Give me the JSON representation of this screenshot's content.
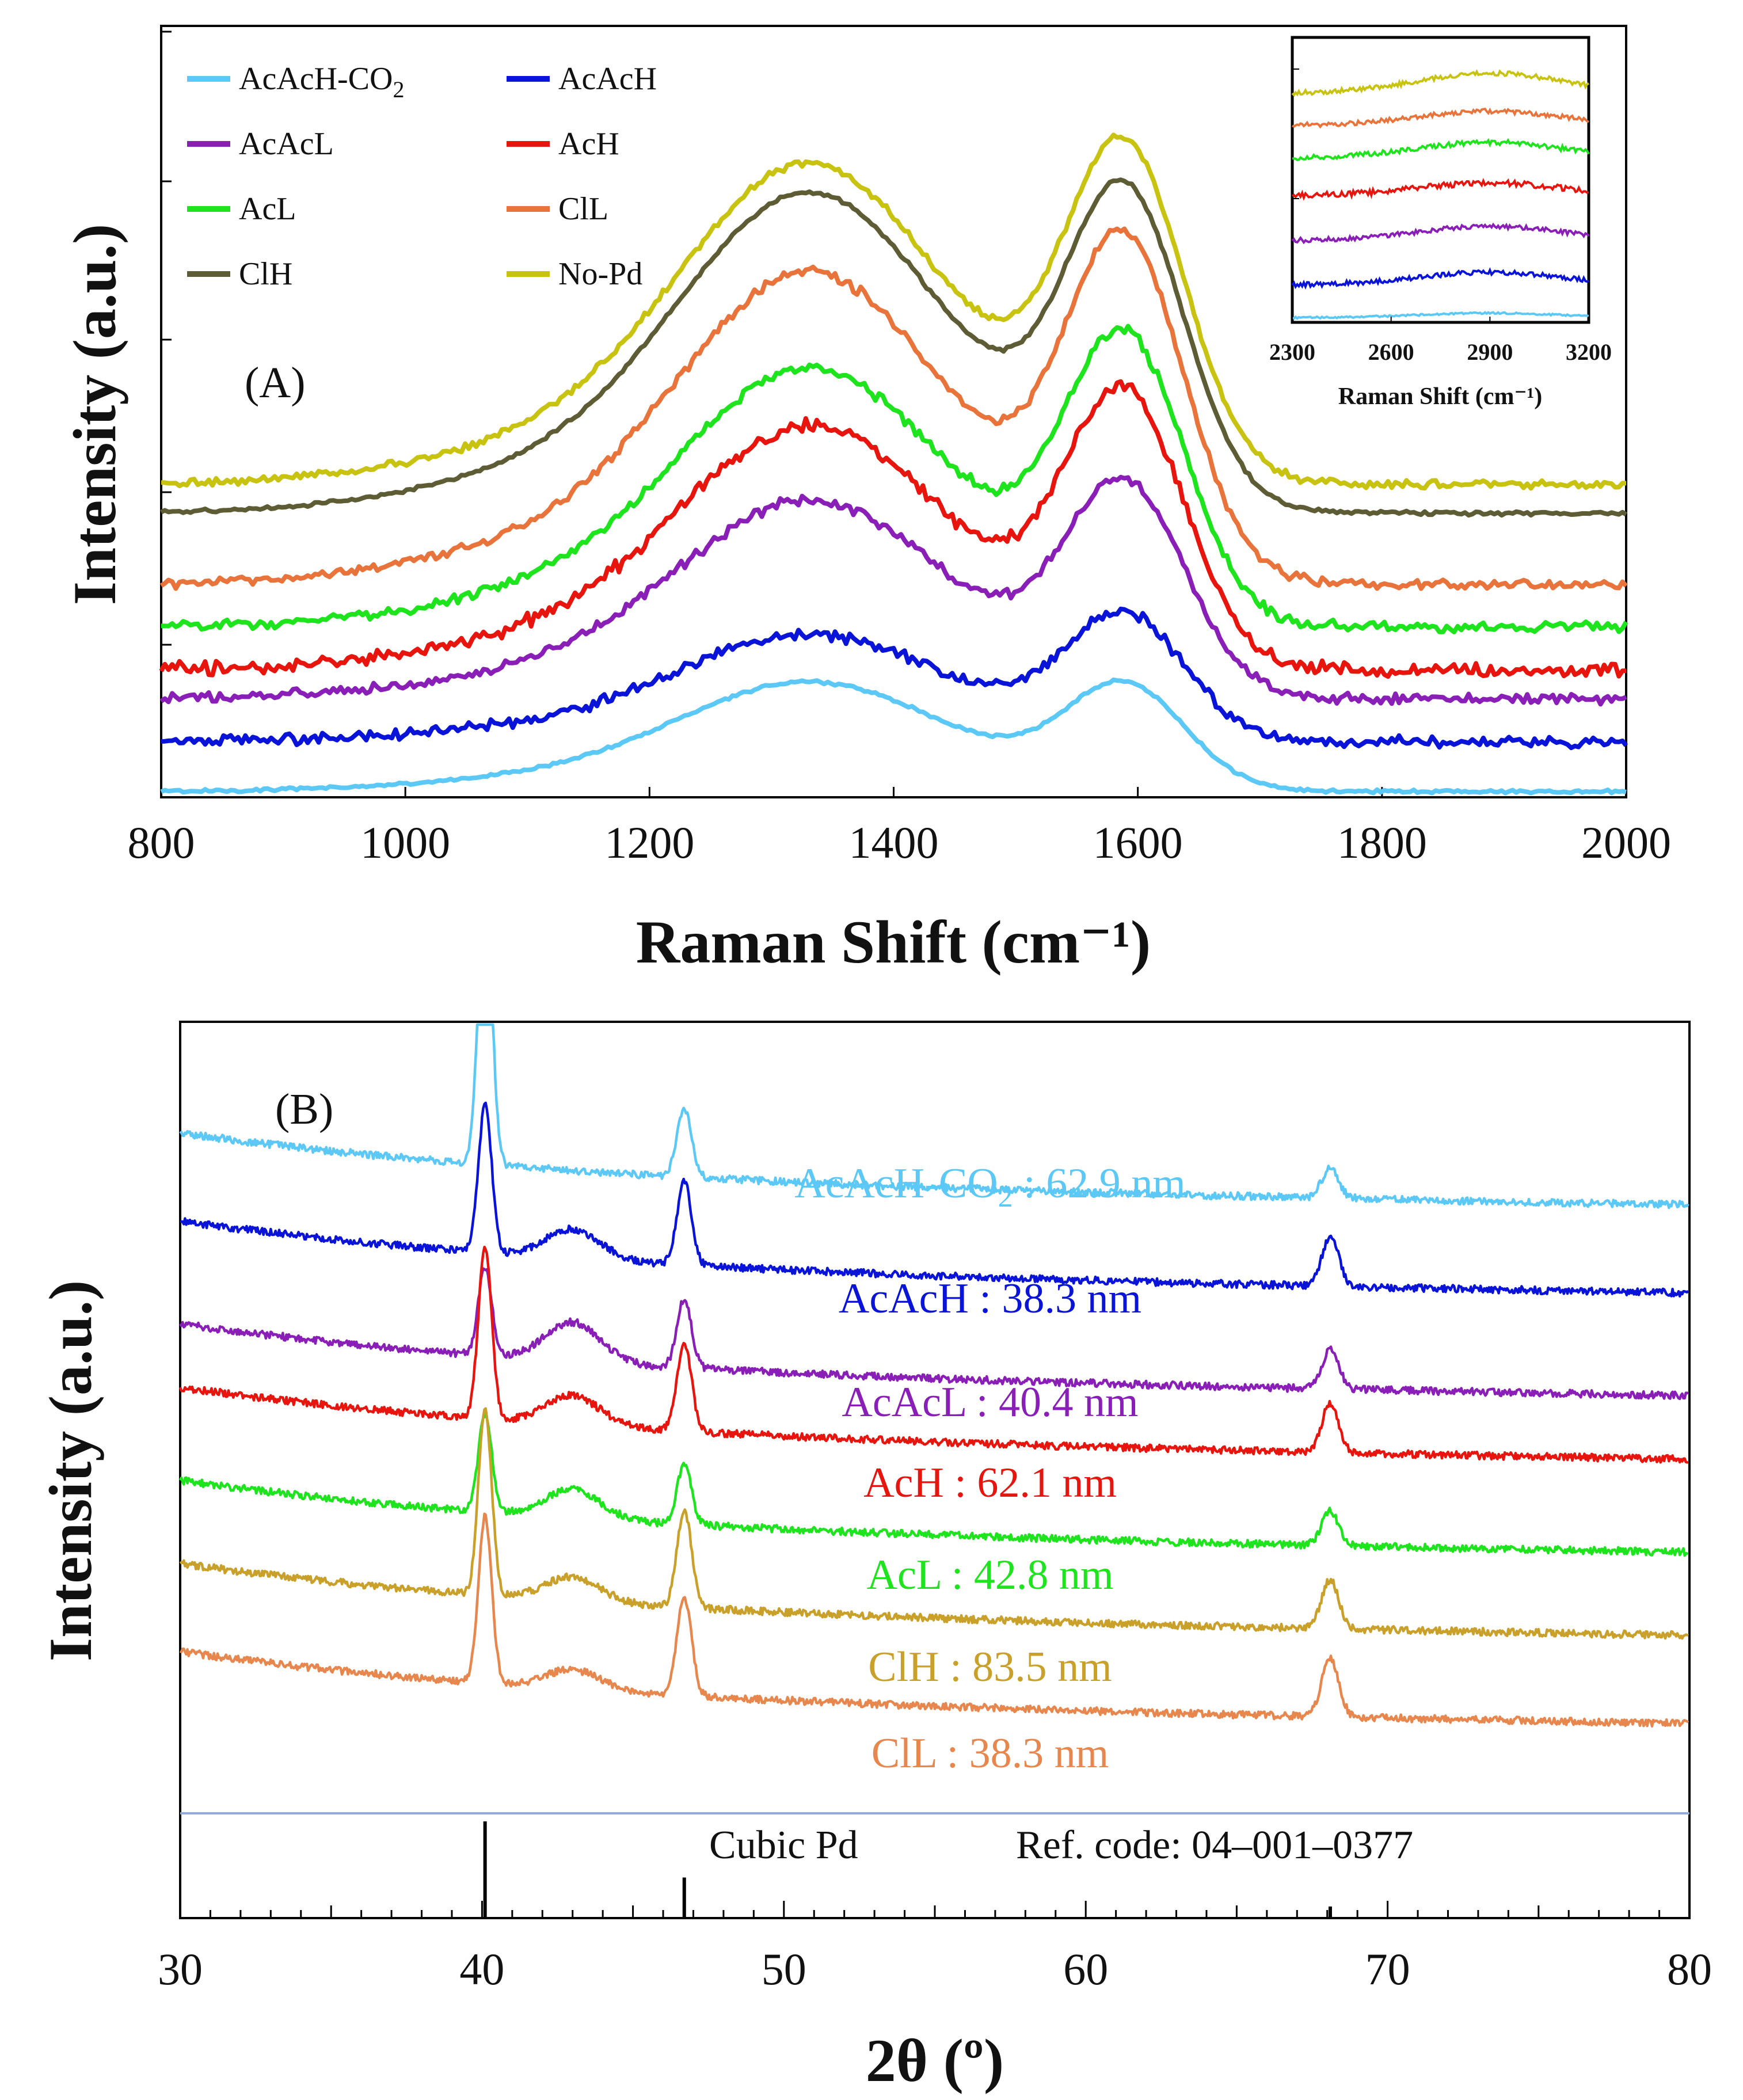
{
  "chart_data": [
    {
      "type": "line",
      "panel_label": "(A)",
      "xlabel": "Raman Shift (cm⁻¹)",
      "ylabel": "Intensity (a.u.)",
      "xlim": [
        800,
        2000
      ],
      "xticks": [
        "800",
        "1000",
        "1200",
        "1400",
        "1600",
        "1800",
        "2000"
      ],
      "series": [
        {
          "name": "AcAcH-CO2",
          "label": "AcAcH-CO",
          "sub": "2",
          "color": "#5BC8F5",
          "baseline": 0.0,
          "d_peak": 0.72,
          "g_peak": 0.7,
          "valley": 0.3,
          "noise": 0.01
        },
        {
          "name": "AcAcH",
          "label": "AcAcH",
          "sub": "",
          "color": "#0A14D8",
          "baseline": 0.35,
          "d_peak": 1.05,
          "g_peak": 1.18,
          "valley": 0.68,
          "noise": 0.035
        },
        {
          "name": "AcAcL",
          "label": "AcAcL",
          "sub": "",
          "color": "#8A1FB8",
          "baseline": 0.65,
          "d_peak": 1.95,
          "g_peak": 2.05,
          "valley": 1.48,
          "noise": 0.035
        },
        {
          "name": "AcH",
          "label": "AcH",
          "sub": "",
          "color": "#E8150E",
          "baseline": 0.85,
          "d_peak": 2.45,
          "g_peak": 2.65,
          "valley": 1.75,
          "noise": 0.045
        },
        {
          "name": "AcL",
          "label": "AcL",
          "sub": "",
          "color": "#1DE41D",
          "baseline": 1.15,
          "d_peak": 2.85,
          "g_peak": 3.05,
          "valley": 2.35,
          "noise": 0.035
        },
        {
          "name": "ClL",
          "label": "ClL",
          "sub": "",
          "color": "#E8743B",
          "baseline": 1.45,
          "d_peak": 3.5,
          "g_peak": 3.7,
          "valley": 2.75,
          "noise": 0.03
        },
        {
          "name": "ClH",
          "label": "ClH",
          "sub": "",
          "color": "#5E5C35",
          "baseline": 1.95,
          "d_peak": 4.05,
          "g_peak": 4.05,
          "valley": 2.85,
          "noise": 0.012
        },
        {
          "name": "No-Pd",
          "label": "No-Pd",
          "sub": "",
          "color": "#C8C210",
          "baseline": 2.15,
          "d_peak": 4.25,
          "g_peak": 4.35,
          "valley": 3.25,
          "noise": 0.025
        }
      ],
      "inset": {
        "xlabel": "Raman Shift (cm⁻¹)",
        "xlim": [
          2300,
          3200
        ],
        "xticks": [
          "2300",
          "2600",
          "2900",
          "3200"
        ],
        "peak_center": 2900
      }
    },
    {
      "type": "line",
      "panel_label": "(B)",
      "xlabel": "2θ (º)",
      "ylabel": "Intensity (a.u.)",
      "xlim": [
        30,
        80
      ],
      "xticks": [
        "30",
        "40",
        "50",
        "60",
        "70",
        "80"
      ],
      "series": [
        {
          "name": "AcAcH-CO2",
          "label": "AcAcH-CO",
          "sub": "2",
          "suffix": " : 62.9 nm",
          "color": "#5BC8F5",
          "offset": 6.05,
          "p40": 3.0,
          "p47": 0.7,
          "p68": 0.3,
          "broad43": 0.0
        },
        {
          "name": "AcAcH",
          "label": "AcAcH : 38.3 nm",
          "sub": "",
          "suffix": "",
          "color": "#0A14D8",
          "offset": 5.15,
          "p40": 1.5,
          "p47": 0.85,
          "p68": 0.5,
          "broad43": 0.3
        },
        {
          "name": "AcAcL",
          "label": "AcAcL : 40.4 nm",
          "sub": "",
          "suffix": "",
          "color": "#8A1FB8",
          "offset": 4.1,
          "p40": 0.9,
          "p47": 0.7,
          "p68": 0.4,
          "broad43": 0.4
        },
        {
          "name": "AcH",
          "label": "AcH : 62.1 nm",
          "sub": "",
          "suffix": "",
          "color": "#E8150E",
          "offset": 3.45,
          "p40": 1.75,
          "p47": 0.9,
          "p68": 0.5,
          "broad43": 0.3
        },
        {
          "name": "AcL",
          "label": "AcL : 42.8 nm",
          "sub": "",
          "suffix": "",
          "color": "#1DE41D",
          "offset": 2.5,
          "p40": 1.0,
          "p47": 0.6,
          "p68": 0.35,
          "broad43": 0.3
        },
        {
          "name": "ClH",
          "label": "ClH : 83.5 nm",
          "sub": "",
          "suffix": "",
          "color": "#C9A02A",
          "offset": 1.65,
          "p40": 1.9,
          "p47": 1.0,
          "p68": 0.5,
          "broad43": 0.25
        },
        {
          "name": "ClL",
          "label": "ClL : 38.3 nm",
          "sub": "",
          "suffix": "",
          "color": "#E8874D",
          "offset": 0.75,
          "p40": 1.7,
          "p47": 1.0,
          "p68": 0.6,
          "broad43": 0.2
        }
      ],
      "reference": {
        "label": "Cubic Pd",
        "code": "Ref. code: 04–001–0377",
        "peaks": [
          {
            "x": 40.1,
            "rel": 100
          },
          {
            "x": 46.7,
            "rel": 42
          },
          {
            "x": 68.1,
            "rel": 12
          }
        ]
      }
    }
  ]
}
